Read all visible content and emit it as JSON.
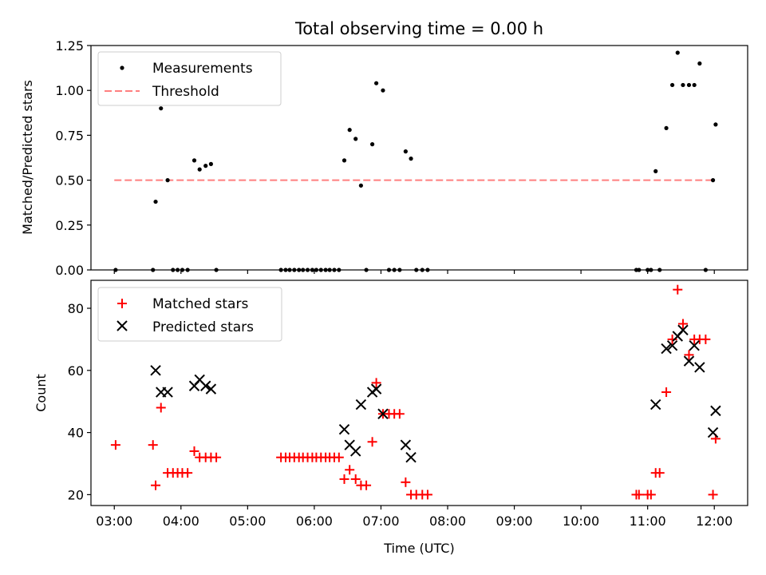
{
  "chart_data": [
    {
      "type": "scatter",
      "title": "Total observing time = 0.00 h",
      "ylabel": "Matched/Predicted stars",
      "xlabel": "",
      "xlim_hours": [
        2.65,
        12.5
      ],
      "ylim": [
        0,
        1.25
      ],
      "yticks": [
        "0.00",
        "0.25",
        "0.50",
        "0.75",
        "1.00",
        "1.25"
      ],
      "legend_position": "upper-left",
      "series": [
        {
          "name": "Measurements",
          "marker": "dot",
          "color": "#000000",
          "points": [
            [
              3.02,
              0.0
            ],
            [
              3.58,
              0.0
            ],
            [
              3.62,
              0.38
            ],
            [
              3.7,
              0.9
            ],
            [
              3.8,
              0.5
            ],
            [
              3.88,
              0.0
            ],
            [
              3.95,
              0.0
            ],
            [
              4.02,
              0.0
            ],
            [
              4.1,
              0.0
            ],
            [
              4.2,
              0.61
            ],
            [
              4.28,
              0.56
            ],
            [
              4.37,
              0.58
            ],
            [
              4.45,
              0.59
            ],
            [
              4.53,
              0.0
            ],
            [
              5.5,
              0.0
            ],
            [
              5.57,
              0.0
            ],
            [
              5.63,
              0.0
            ],
            [
              5.7,
              0.0
            ],
            [
              5.77,
              0.0
            ],
            [
              5.83,
              0.0
            ],
            [
              5.9,
              0.0
            ],
            [
              5.97,
              0.0
            ],
            [
              6.03,
              0.0
            ],
            [
              6.1,
              0.0
            ],
            [
              6.17,
              0.0
            ],
            [
              6.23,
              0.0
            ],
            [
              6.3,
              0.0
            ],
            [
              6.37,
              0.0
            ],
            [
              6.45,
              0.61
            ],
            [
              6.53,
              0.78
            ],
            [
              6.62,
              0.73
            ],
            [
              6.7,
              0.47
            ],
            [
              6.78,
              0.0
            ],
            [
              6.87,
              0.7
            ],
            [
              6.93,
              1.04
            ],
            [
              7.03,
              1.0
            ],
            [
              7.12,
              0.0
            ],
            [
              7.2,
              0.0
            ],
            [
              7.28,
              0.0
            ],
            [
              7.37,
              0.66
            ],
            [
              7.45,
              0.62
            ],
            [
              7.53,
              0.0
            ],
            [
              7.62,
              0.0
            ],
            [
              7.7,
              0.0
            ],
            [
              10.83,
              0.0
            ],
            [
              10.87,
              0.0
            ],
            [
              11.0,
              0.0
            ],
            [
              11.05,
              0.0
            ],
            [
              11.12,
              0.55
            ],
            [
              11.18,
              0.0
            ],
            [
              11.28,
              0.79
            ],
            [
              11.37,
              1.03
            ],
            [
              11.45,
              1.21
            ],
            [
              11.53,
              1.03
            ],
            [
              11.62,
              1.03
            ],
            [
              11.7,
              1.03
            ],
            [
              11.78,
              1.15
            ],
            [
              11.87,
              0.0
            ],
            [
              11.98,
              0.5
            ],
            [
              12.02,
              0.81
            ]
          ]
        },
        {
          "name": "Threshold",
          "marker": "dashed-line",
          "color": "#ff7f7f",
          "points": [
            [
              3.0,
              0.5
            ],
            [
              12.0,
              0.5
            ]
          ]
        }
      ]
    },
    {
      "type": "scatter",
      "title": "",
      "ylabel": "Count",
      "xlabel": "Time (UTC)",
      "xlim_hours": [
        2.65,
        12.5
      ],
      "ylim": [
        16.5,
        89
      ],
      "yticks": [
        "20",
        "40",
        "60",
        "80"
      ],
      "xticks": [
        "03:00",
        "04:00",
        "05:00",
        "06:00",
        "07:00",
        "08:00",
        "09:00",
        "10:00",
        "11:00",
        "12:00"
      ],
      "legend_position": "upper-left",
      "series": [
        {
          "name": "Matched stars",
          "marker": "plus",
          "color": "#ff0000",
          "points": [
            [
              3.02,
              36
            ],
            [
              3.58,
              36
            ],
            [
              3.62,
              23
            ],
            [
              3.7,
              48
            ],
            [
              3.8,
              27
            ],
            [
              3.88,
              27
            ],
            [
              3.95,
              27
            ],
            [
              4.02,
              27
            ],
            [
              4.1,
              27
            ],
            [
              4.2,
              34
            ],
            [
              4.28,
              32
            ],
            [
              4.37,
              32
            ],
            [
              4.45,
              32
            ],
            [
              4.53,
              32
            ],
            [
              5.5,
              32
            ],
            [
              5.57,
              32
            ],
            [
              5.63,
              32
            ],
            [
              5.7,
              32
            ],
            [
              5.77,
              32
            ],
            [
              5.83,
              32
            ],
            [
              5.9,
              32
            ],
            [
              5.97,
              32
            ],
            [
              6.03,
              32
            ],
            [
              6.1,
              32
            ],
            [
              6.17,
              32
            ],
            [
              6.23,
              32
            ],
            [
              6.3,
              32
            ],
            [
              6.37,
              32
            ],
            [
              6.45,
              25
            ],
            [
              6.53,
              28
            ],
            [
              6.62,
              25
            ],
            [
              6.7,
              23
            ],
            [
              6.78,
              23
            ],
            [
              6.87,
              37
            ],
            [
              6.93,
              56
            ],
            [
              7.03,
              46
            ],
            [
              7.12,
              46
            ],
            [
              7.2,
              46
            ],
            [
              7.28,
              46
            ],
            [
              7.37,
              24
            ],
            [
              7.45,
              20
            ],
            [
              7.53,
              20
            ],
            [
              7.62,
              20
            ],
            [
              7.7,
              20
            ],
            [
              10.83,
              20
            ],
            [
              10.87,
              20
            ],
            [
              11.0,
              20
            ],
            [
              11.05,
              20
            ],
            [
              11.12,
              27
            ],
            [
              11.18,
              27
            ],
            [
              11.28,
              53
            ],
            [
              11.37,
              70
            ],
            [
              11.45,
              86
            ],
            [
              11.53,
              75
            ],
            [
              11.62,
              65
            ],
            [
              11.7,
              70
            ],
            [
              11.78,
              70
            ],
            [
              11.87,
              70
            ],
            [
              11.98,
              20
            ],
            [
              12.02,
              38
            ]
          ]
        },
        {
          "name": "Predicted stars",
          "marker": "x",
          "color": "#000000",
          "points": [
            [
              3.62,
              60
            ],
            [
              3.7,
              53
            ],
            [
              3.8,
              53
            ],
            [
              4.2,
              55
            ],
            [
              4.28,
              57
            ],
            [
              4.37,
              55
            ],
            [
              4.45,
              54
            ],
            [
              6.45,
              41
            ],
            [
              6.53,
              36
            ],
            [
              6.62,
              34
            ],
            [
              6.7,
              49
            ],
            [
              6.87,
              53
            ],
            [
              6.93,
              54
            ],
            [
              7.03,
              46
            ],
            [
              7.37,
              36
            ],
            [
              7.45,
              32
            ],
            [
              11.12,
              49
            ],
            [
              11.28,
              67
            ],
            [
              11.37,
              68
            ],
            [
              11.45,
              71
            ],
            [
              11.53,
              73
            ],
            [
              11.62,
              63
            ],
            [
              11.7,
              68
            ],
            [
              11.78,
              61
            ],
            [
              11.98,
              40
            ],
            [
              12.02,
              47
            ]
          ]
        }
      ]
    }
  ]
}
